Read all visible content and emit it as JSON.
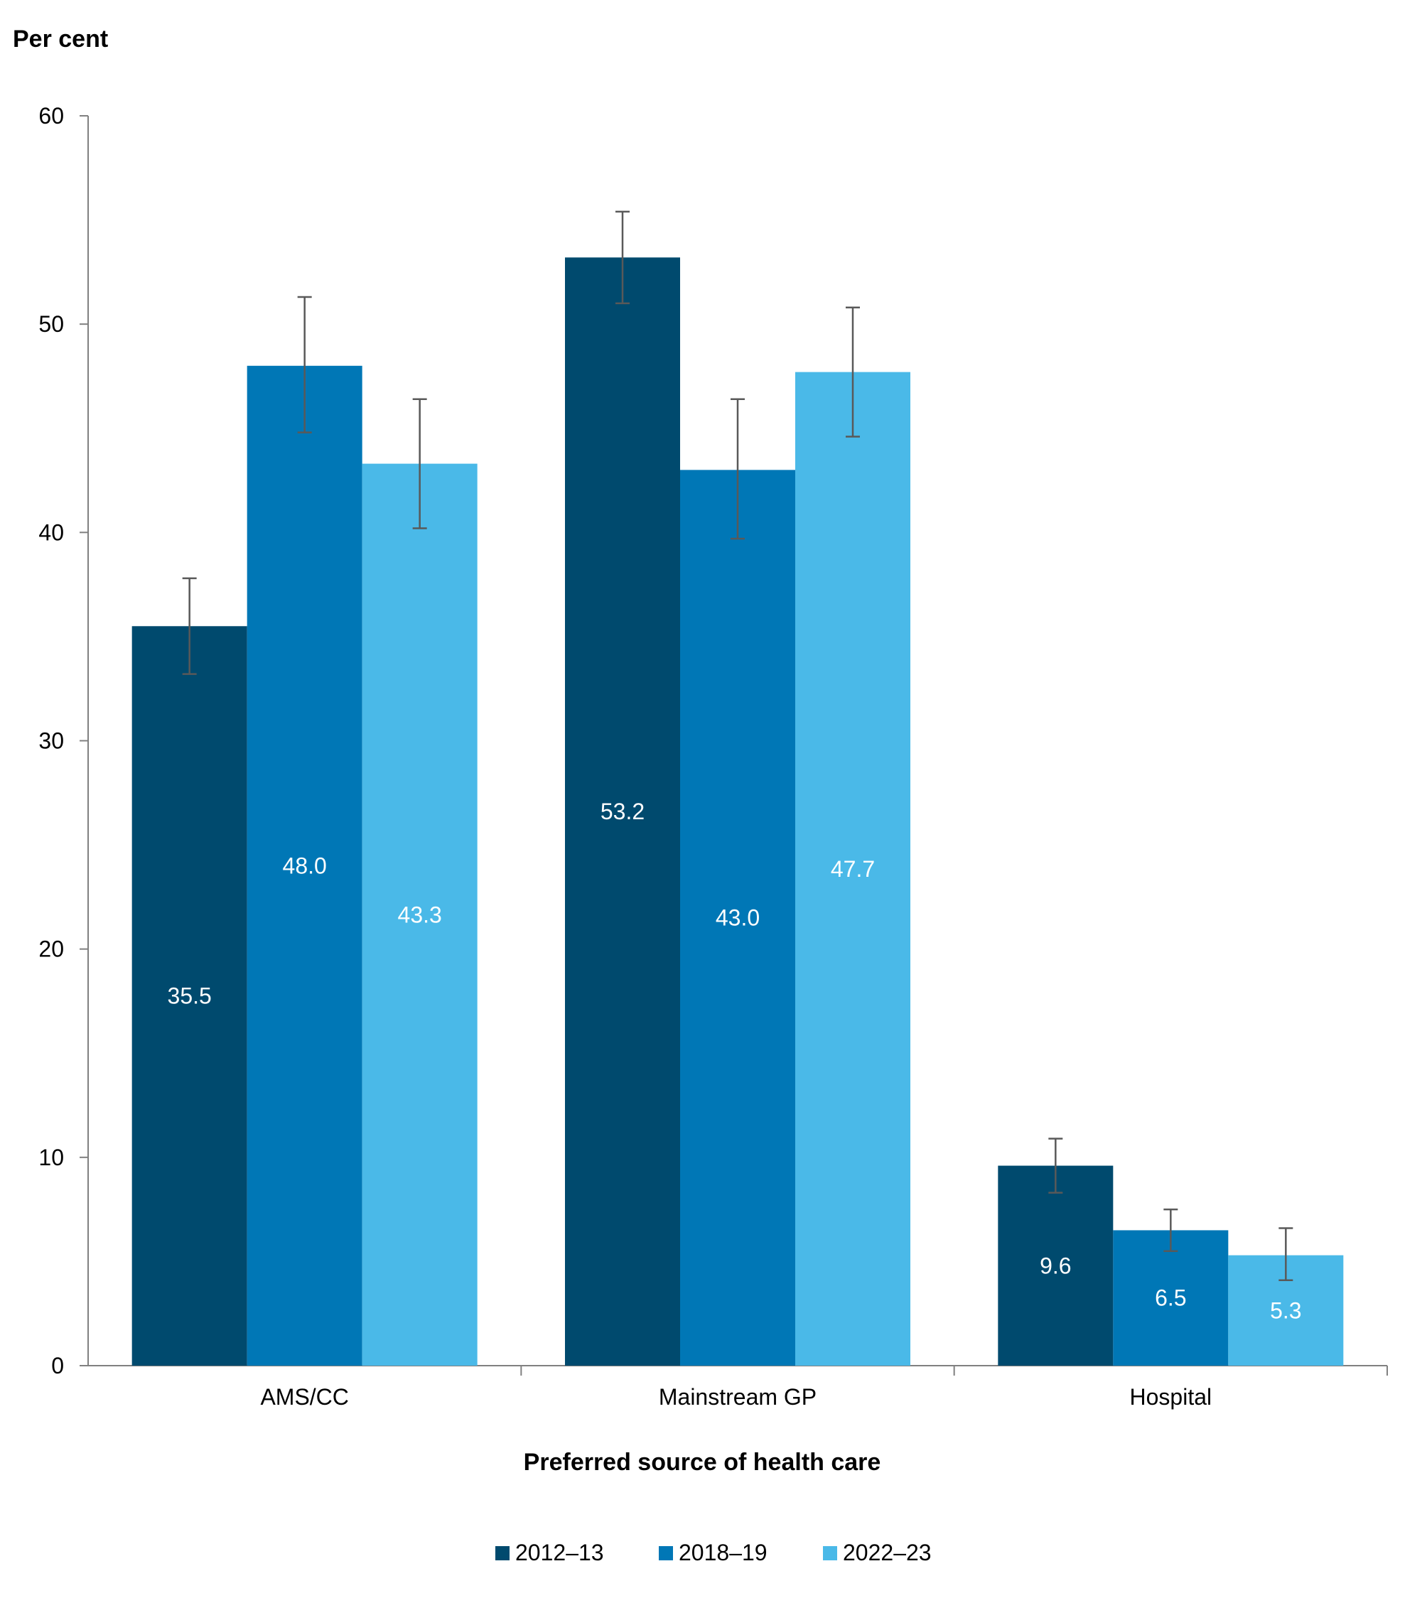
{
  "chart_data": {
    "type": "bar",
    "ylabel": "Per cent",
    "xlabel": "Preferred source of health care",
    "ylim": [
      0,
      60
    ],
    "yticks": [
      0,
      10,
      20,
      30,
      40,
      50,
      60
    ],
    "ytick_labels": [
      "0",
      "10",
      "20",
      "30",
      "40",
      "50",
      "60"
    ],
    "categories": [
      "AMS/CC",
      "Mainstream GP",
      "Hospital"
    ],
    "series": [
      {
        "name": "2012–13",
        "color": "#004a6e",
        "values": [
          35.5,
          53.2,
          9.6
        ],
        "labels": [
          "35.5",
          "53.2",
          "9.6"
        ],
        "error_low": [
          33.2,
          51.0,
          8.3
        ],
        "error_high": [
          37.8,
          55.4,
          10.9
        ]
      },
      {
        "name": "2018–19",
        "color": "#0077b6",
        "values": [
          48.0,
          43.0,
          6.5
        ],
        "labels": [
          "48.0",
          "43.0",
          "6.5"
        ],
        "error_low": [
          44.8,
          39.7,
          5.5
        ],
        "error_high": [
          51.3,
          46.4,
          7.5
        ]
      },
      {
        "name": "2022–23",
        "color": "#4ab9e8",
        "values": [
          43.3,
          47.7,
          5.3
        ],
        "labels": [
          "43.3",
          "47.7",
          "5.3"
        ],
        "error_low": [
          40.2,
          44.6,
          4.1
        ],
        "error_high": [
          46.4,
          50.8,
          6.6
        ]
      }
    ],
    "error_bar_color": "#595959",
    "axis_color": "#808080",
    "grid": false,
    "legend_position": "bottom"
  }
}
